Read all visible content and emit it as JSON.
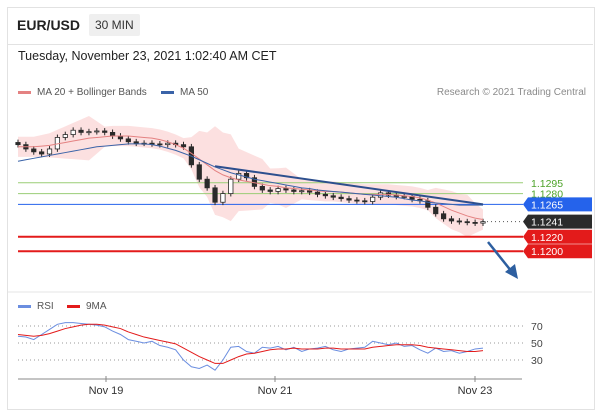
{
  "header": {
    "symbol": "EUR/USD",
    "interval": "30 MIN",
    "datetime": "Tuesday, November 23, 2021 1:02:40 AM CET"
  },
  "legend": {
    "ma20": "MA 20 + Bollinger Bands",
    "ma50": "MA 50",
    "research": "Research © 2021 Trading Central"
  },
  "rsi_legend": {
    "rsi": "RSI",
    "ma9": "9MA"
  },
  "colors": {
    "ma20": "#e48282",
    "ma50": "#3a63a8",
    "bollinger": "#fbdada",
    "resistance_green": "#9acd76",
    "level_blue": "#2563eb",
    "support_red": "#e31b1b",
    "trendline": "#2d4f8e",
    "arrow": "#2d5fa0",
    "rsi": "#6b8ee0",
    "rsi_ma": "#e31b1b"
  },
  "chart_data": [
    {
      "type": "line",
      "panel": "price",
      "x_tick_labels": [
        "Nov 19",
        "Nov 21",
        "Nov 23"
      ],
      "ylim": [
        1.1185,
        1.1385
      ],
      "levels": [
        {
          "value": 1.1295,
          "label": "1.1295",
          "kind": "resistance"
        },
        {
          "value": 1.128,
          "label": "1.1280",
          "kind": "resistance"
        },
        {
          "value": 1.1265,
          "label": "1.1265",
          "kind": "pivot"
        },
        {
          "value": 1.1241,
          "label": "1.1241",
          "kind": "last_price"
        },
        {
          "value": 1.122,
          "label": "1.1220",
          "kind": "support"
        },
        {
          "value": 1.12,
          "label": "1.1200",
          "kind": "support"
        }
      ],
      "series": [
        {
          "name": "price",
          "values": [
            1.1348,
            1.1342,
            1.1338,
            1.1335,
            1.1342,
            1.1358,
            1.1362,
            1.1368,
            1.1365,
            1.1366,
            1.1367,
            1.1365,
            1.136,
            1.1356,
            1.1352,
            1.135,
            1.135,
            1.1349,
            1.1348,
            1.135,
            1.1348,
            1.1345,
            1.132,
            1.13,
            1.1288,
            1.1268,
            1.128,
            1.13,
            1.1308,
            1.1302,
            1.129,
            1.1285,
            1.1283,
            1.1287,
            1.1285,
            1.1283,
            1.1284,
            1.1282,
            1.1279,
            1.1277,
            1.1275,
            1.1273,
            1.1271,
            1.127,
            1.1269,
            1.1275,
            1.1281,
            1.1278,
            1.1276,
            1.1276,
            1.1272,
            1.127,
            1.1261,
            1.1252,
            1.1245,
            1.1242,
            1.1241,
            1.124,
            1.1239,
            1.1241
          ]
        },
        {
          "name": "MA 20",
          "values": [
            1.1345,
            1.1345,
            1.1345,
            1.1346,
            1.1347,
            1.1349,
            1.1351,
            1.1353,
            1.1355,
            1.1357,
            1.1358,
            1.1359,
            1.136,
            1.136,
            1.136,
            1.1359,
            1.1358,
            1.1357,
            1.1355,
            1.1352,
            1.1348,
            1.1343,
            1.1336,
            1.1328,
            1.132,
            1.1312,
            1.1306,
            1.1302,
            1.1299,
            1.1297,
            1.1295,
            1.1293,
            1.1291,
            1.129,
            1.1288,
            1.1287,
            1.1286,
            1.1285,
            1.1284,
            1.1283,
            1.1283,
            1.1282,
            1.1281,
            1.128,
            1.1279,
            1.1279,
            1.1279,
            1.1279,
            1.1278,
            1.1277,
            1.1276,
            1.1274,
            1.1271,
            1.1267,
            1.1262,
            1.1257,
            1.1253,
            1.1249,
            1.1246,
            1.1244
          ]
        },
        {
          "name": "MA 50",
          "values": [
            1.1325,
            1.1327,
            1.1329,
            1.1331,
            1.1333,
            1.1335,
            1.1337,
            1.1339,
            1.1341,
            1.1343,
            1.1345,
            1.1346,
            1.1347,
            1.1348,
            1.1349,
            1.1349,
            1.1349,
            1.1348,
            1.1346,
            1.1343,
            1.134,
            1.1336,
            1.1332,
            1.1327,
            1.1322,
            1.1317,
            1.1313,
            1.1309,
            1.1306,
            1.1303,
            1.13,
            1.1298,
            1.1296,
            1.1294,
            1.1292,
            1.129,
            1.1288,
            1.1287,
            1.1285,
            1.1284,
            1.1283,
            1.1282,
            1.1281,
            1.128,
            1.1279,
            1.1278,
            1.1277,
            1.1276,
            1.1275,
            1.1273,
            1.1271,
            1.127,
            1.1268,
            1.1267,
            1.1266,
            1.1265,
            1.1264,
            1.1264,
            1.1264,
            1.1264
          ]
        }
      ]
    },
    {
      "type": "line",
      "panel": "rsi",
      "ylim": [
        15,
        85
      ],
      "y_ticks": [
        70,
        50,
        30
      ],
      "series": [
        {
          "name": "RSI",
          "values": [
            58,
            57,
            54,
            60,
            66,
            72,
            74,
            74,
            73,
            72,
            71,
            69,
            64,
            60,
            54,
            52,
            50,
            52,
            47,
            45,
            42,
            30,
            22,
            20,
            24,
            18,
            30,
            45,
            46,
            40,
            38,
            45,
            44,
            46,
            42,
            45,
            40,
            43,
            44,
            46,
            42,
            40,
            43,
            44,
            45,
            52,
            50,
            48,
            50,
            46,
            47,
            42,
            38,
            44,
            40,
            41,
            38,
            40,
            43,
            44
          ]
        },
        {
          "name": "9MA",
          "values": [
            60,
            59,
            58,
            59,
            61,
            64,
            67,
            69,
            71,
            72,
            72,
            71,
            69,
            67,
            63,
            60,
            57,
            55,
            53,
            51,
            49,
            44,
            39,
            34,
            30,
            26,
            26,
            30,
            34,
            37,
            38,
            40,
            42,
            43,
            43,
            44,
            43,
            43,
            43,
            44,
            44,
            43,
            43,
            43,
            43,
            45,
            46,
            47,
            48,
            48,
            48,
            47,
            45,
            44,
            43,
            42,
            41,
            40,
            40,
            41
          ]
        }
      ]
    }
  ]
}
